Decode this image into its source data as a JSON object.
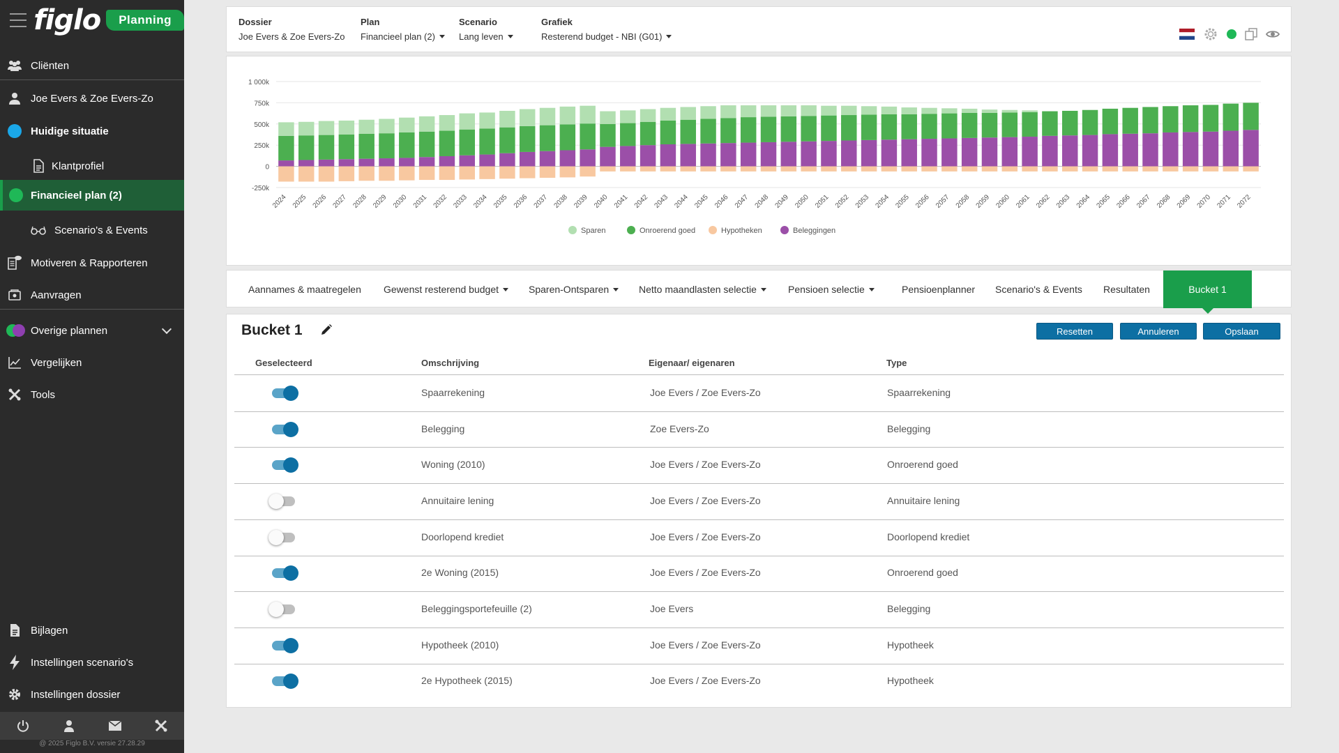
{
  "app": {
    "logo": "figlo",
    "badge": "Planning"
  },
  "sidebar": {
    "clients": "Cliënten",
    "person": "Joe Evers & Zoe Evers-Zo",
    "current": "Huidige situatie",
    "profile": "Klantprofiel",
    "plan": "Financieel plan (2)",
    "scenarios": "Scenario's & Events",
    "motivate": "Motiveren & Rapporteren",
    "requests": "Aanvragen",
    "other_plans": "Overige plannen",
    "compare": "Vergelijken",
    "tools": "Tools",
    "attachments": "Bijlagen",
    "settings_scenarios": "Instellingen scenario's",
    "settings_dossier": "Instellingen dossier",
    "version": "@ 2025 Figlo B.V. versie 27.28.29"
  },
  "header": {
    "dossier_label": "Dossier",
    "dossier_value": "Joe Evers & Zoe Evers-Zo",
    "plan_label": "Plan",
    "plan_value": "Financieel plan (2)",
    "scenario_label": "Scenario",
    "scenario_value": "Lang leven",
    "chart_label": "Grafiek",
    "chart_value": "Resterend budget - NBI (G01)"
  },
  "chart_data": {
    "type": "bar",
    "stacked": true,
    "categories": [
      "2024",
      "2025",
      "2026",
      "2027",
      "2028",
      "2029",
      "2030",
      "2031",
      "2032",
      "2033",
      "2034",
      "2035",
      "2036",
      "2037",
      "2038",
      "2039",
      "2040",
      "2041",
      "2042",
      "2043",
      "2044",
      "2045",
      "2046",
      "2047",
      "2048",
      "2049",
      "2050",
      "2051",
      "2052",
      "2053",
      "2054",
      "2055",
      "2056",
      "2057",
      "2058",
      "2059",
      "2060",
      "2061",
      "2062",
      "2063",
      "2064",
      "2065",
      "2066",
      "2067",
      "2068",
      "2069",
      "2070",
      "2071",
      "2072"
    ],
    "yticks": [
      "1 000k",
      "750k",
      "500k",
      "250k",
      "0",
      "-250k"
    ],
    "ylim": [
      -250,
      1000
    ],
    "legend_position": "bottom",
    "series": [
      {
        "name": "Beleggingen",
        "color": "#9b4fa8",
        "values": [
          70,
          75,
          80,
          85,
          90,
          95,
          100,
          110,
          120,
          130,
          140,
          155,
          170,
          180,
          190,
          200,
          230,
          240,
          250,
          260,
          265,
          270,
          275,
          280,
          285,
          290,
          295,
          300,
          305,
          310,
          315,
          320,
          325,
          330,
          335,
          340,
          345,
          350,
          360,
          365,
          370,
          380,
          385,
          390,
          400,
          405,
          410,
          420,
          430
        ]
      },
      {
        "name": "Onroerend goed",
        "color": "#4caf50",
        "values": [
          290,
          290,
          290,
          290,
          295,
          295,
          300,
          300,
          300,
          305,
          305,
          305,
          305,
          305,
          305,
          305,
          270,
          270,
          275,
          280,
          285,
          290,
          295,
          300,
          300,
          300,
          300,
          300,
          300,
          300,
          300,
          295,
          295,
          295,
          295,
          290,
          290,
          290,
          290,
          290,
          295,
          300,
          305,
          310,
          310,
          315,
          315,
          320,
          320
        ]
      },
      {
        "name": "Sparen",
        "color": "#b2dfb1",
        "values": [
          160,
          160,
          165,
          165,
          165,
          170,
          175,
          180,
          185,
          190,
          190,
          195,
          200,
          205,
          210,
          210,
          150,
          150,
          150,
          150,
          150,
          150,
          150,
          140,
          135,
          130,
          125,
          115,
          110,
          100,
          90,
          80,
          70,
          60,
          50,
          40,
          30,
          20,
          0,
          0,
          0,
          0,
          0,
          0,
          0,
          0,
          0,
          0,
          0
        ]
      },
      {
        "name": "Hypotheken",
        "color": "#f8c8a0",
        "values": [
          -180,
          -180,
          -180,
          -175,
          -170,
          -170,
          -165,
          -160,
          -160,
          -155,
          -150,
          -145,
          -140,
          -135,
          -130,
          -120,
          -60,
          -60,
          -60,
          -60,
          -60,
          -60,
          -60,
          -60,
          -60,
          -60,
          -60,
          -60,
          -60,
          -60,
          -60,
          -60,
          -60,
          -60,
          -60,
          -60,
          -60,
          -60,
          -60,
          -60,
          -60,
          -60,
          -60,
          -60,
          -60,
          -60,
          -60,
          -60,
          -60
        ]
      }
    ]
  },
  "tabs": [
    {
      "label": "Aannames & maatregelen",
      "dropdown": false
    },
    {
      "label": "Gewenst resterend budget",
      "dropdown": true
    },
    {
      "label": "Sparen-Ontsparen",
      "dropdown": true
    },
    {
      "label": "Netto maandlasten selectie",
      "dropdown": true
    },
    {
      "label": "Pensioen selectie",
      "dropdown": true
    },
    {
      "label": "Pensioenplanner",
      "dropdown": false
    },
    {
      "label": "Scenario's & Events",
      "dropdown": false
    },
    {
      "label": "Resultaten",
      "dropdown": false
    },
    {
      "label": "Bucket 1",
      "dropdown": false
    }
  ],
  "bucket": {
    "title": "Bucket 1",
    "reset": "Resetten",
    "cancel": "Annuleren",
    "save": "Opslaan",
    "columns": [
      "Geselecteerd",
      "Omschrijving",
      "Eigenaar/ eigenaren",
      "Type"
    ],
    "rows": [
      {
        "selected": true,
        "description": "Spaarrekening",
        "owners": "Joe Evers / Zoe Evers-Zo",
        "type": "Spaarrekening"
      },
      {
        "selected": true,
        "description": "Belegging",
        "owners": "Zoe Evers-Zo",
        "type": "Belegging"
      },
      {
        "selected": true,
        "description": "Woning (2010)",
        "owners": "Joe Evers / Zoe Evers-Zo",
        "type": "Onroerend goed"
      },
      {
        "selected": false,
        "description": "Annuitaire lening",
        "owners": "Joe Evers / Zoe Evers-Zo",
        "type": "Annuitaire lening"
      },
      {
        "selected": false,
        "description": "Doorlopend krediet",
        "owners": "Joe Evers / Zoe Evers-Zo",
        "type": "Doorlopend krediet"
      },
      {
        "selected": true,
        "description": "2e Woning (2015)",
        "owners": "Joe Evers / Zoe Evers-Zo",
        "type": "Onroerend goed"
      },
      {
        "selected": false,
        "description": "Beleggingsportefeuille (2)",
        "owners": "Joe Evers",
        "type": "Belegging"
      },
      {
        "selected": true,
        "description": "Hypotheek (2010)",
        "owners": "Joe Evers / Zoe Evers-Zo",
        "type": "Hypotheek"
      },
      {
        "selected": true,
        "description": "2e Hypotheek (2015)",
        "owners": "Joe Evers / Zoe Evers-Zo",
        "type": "Hypotheek"
      }
    ]
  }
}
